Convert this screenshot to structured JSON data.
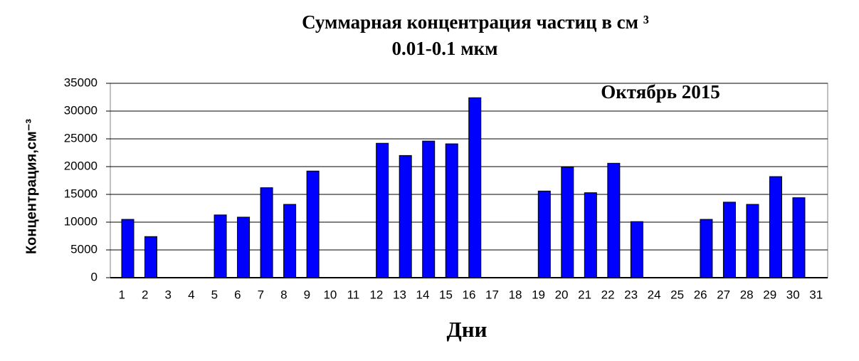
{
  "chart_data": {
    "type": "bar",
    "title": [
      "Суммарная концентрация частиц  в см ³",
      "0.01-0.1 мкм"
    ],
    "annotation": "Октябрь 2015",
    "x_label": "Дни",
    "y_label": "Концентрация,см⁻³",
    "categories": [
      "1",
      "2",
      "3",
      "4",
      "5",
      "6",
      "7",
      "8",
      "9",
      "10",
      "11",
      "12",
      "13",
      "14",
      "15",
      "16",
      "17",
      "18",
      "19",
      "20",
      "21",
      "22",
      "23",
      "24",
      "25",
      "26",
      "27",
      "28",
      "29",
      "30",
      "31"
    ],
    "values": [
      10500,
      7400,
      0,
      0,
      11300,
      10900,
      16200,
      13200,
      19200,
      0,
      0,
      24200,
      22000,
      24600,
      24100,
      32400,
      0,
      0,
      15600,
      19900,
      15300,
      20600,
      10100,
      0,
      0,
      10500,
      13600,
      13200,
      18200,
      14400,
      0
    ],
    "color": "#0000ff",
    "ylim": [
      0,
      35000
    ],
    "yticks": [
      0,
      5000,
      10000,
      15000,
      20000,
      25000,
      30000,
      35000
    ],
    "grid": true
  }
}
